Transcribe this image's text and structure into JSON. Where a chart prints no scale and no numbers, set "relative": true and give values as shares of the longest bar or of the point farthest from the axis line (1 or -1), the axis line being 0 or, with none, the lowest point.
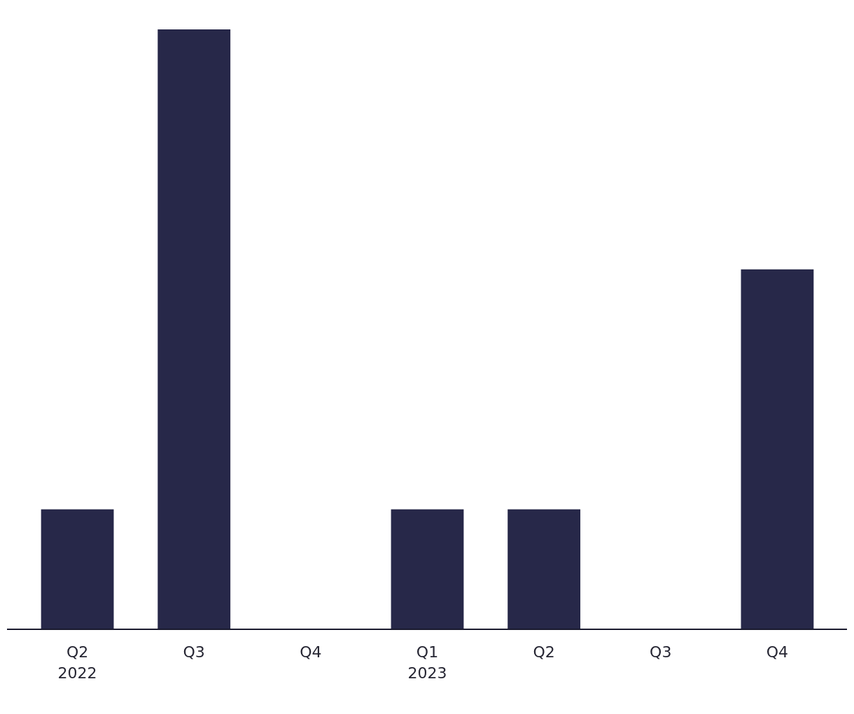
{
  "chart_data": {
    "type": "bar",
    "relative": true,
    "categories": [
      "Q2\n2022",
      "Q3",
      "Q4",
      "Q1\n2023",
      "Q2",
      "Q3",
      "Q4"
    ],
    "values": [
      0.2,
      1,
      0,
      0.2,
      0.2,
      0,
      0.6
    ],
    "color": "#272849"
  }
}
